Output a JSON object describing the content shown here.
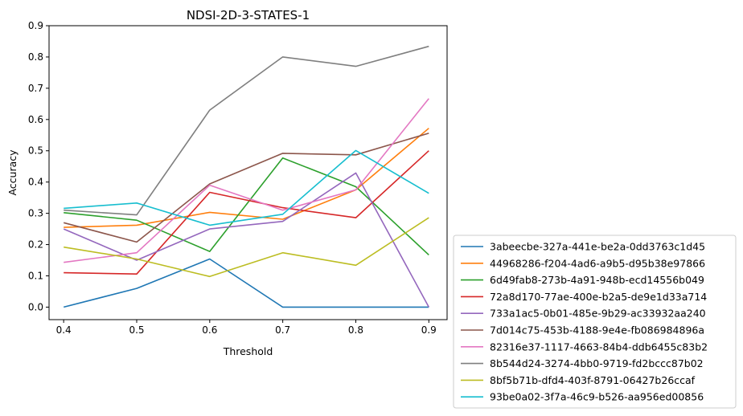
{
  "chart_data": {
    "type": "line",
    "title": "NDSI-2D-3-STATES-1",
    "xlabel": "Threshold",
    "ylabel": "Accuracy",
    "x": [
      0.4,
      0.5,
      0.6,
      0.7,
      0.8,
      0.9
    ],
    "xticks": [
      "0.4",
      "0.5",
      "0.6",
      "0.7",
      "0.8",
      "0.9"
    ],
    "yticks": [
      "0.0",
      "0.1",
      "0.2",
      "0.3",
      "0.4",
      "0.5",
      "0.6",
      "0.7",
      "0.8",
      "0.9"
    ],
    "xlim": [
      0.38,
      0.925
    ],
    "ylim": [
      -0.04,
      0.9
    ],
    "grid": false,
    "legend_position": "lower-right-outside",
    "series": [
      {
        "name": "3abeecbe-327a-441e-be2a-0dd3763c1d45",
        "color": "#1f77b4",
        "values": [
          0.0,
          0.06,
          0.154,
          0.0,
          0.0,
          0.0
        ]
      },
      {
        "name": "44968286-f204-4ad6-a9b5-d95b38e97866",
        "color": "#ff7f0e",
        "values": [
          0.255,
          0.262,
          0.303,
          0.281,
          0.375,
          0.572
        ]
      },
      {
        "name": "6d49fab8-273b-4a91-948b-ecd14556b049",
        "color": "#2ca02c",
        "values": [
          0.302,
          0.278,
          0.178,
          0.477,
          0.385,
          0.167
        ]
      },
      {
        "name": "72a8d170-77ae-400e-b2a5-de9e1d33a714",
        "color": "#d62728",
        "values": [
          0.11,
          0.106,
          0.367,
          0.318,
          0.286,
          0.5
        ]
      },
      {
        "name": "733a1ac5-0b01-485e-9b29-ac33932aa240",
        "color": "#9467bd",
        "values": [
          0.25,
          0.15,
          0.25,
          0.274,
          0.429,
          0.0
        ]
      },
      {
        "name": "7d014c75-453b-4188-9e4e-fb086984896a",
        "color": "#8c564b",
        "values": [
          0.27,
          0.208,
          0.394,
          0.492,
          0.487,
          0.556
        ]
      },
      {
        "name": "82316e37-1117-4663-84b4-ddb6455c83b2",
        "color": "#e377c2",
        "values": [
          0.143,
          0.174,
          0.39,
          0.31,
          0.375,
          0.667
        ]
      },
      {
        "name": "8b544d24-3274-4bb0-9719-fd2bccc87b02",
        "color": "#7f7f7f",
        "values": [
          0.31,
          0.295,
          0.63,
          0.8,
          0.77,
          0.834
        ]
      },
      {
        "name": "8bf5b71b-dfd4-403f-8791-06427b26ccaf",
        "color": "#bcbd22",
        "values": [
          0.192,
          0.154,
          0.098,
          0.174,
          0.134,
          0.286
        ]
      },
      {
        "name": "93be0a02-3f7a-46c9-b526-aa956ed00856",
        "color": "#17becf",
        "values": [
          0.316,
          0.333,
          0.262,
          0.297,
          0.501,
          0.364
        ]
      }
    ]
  }
}
